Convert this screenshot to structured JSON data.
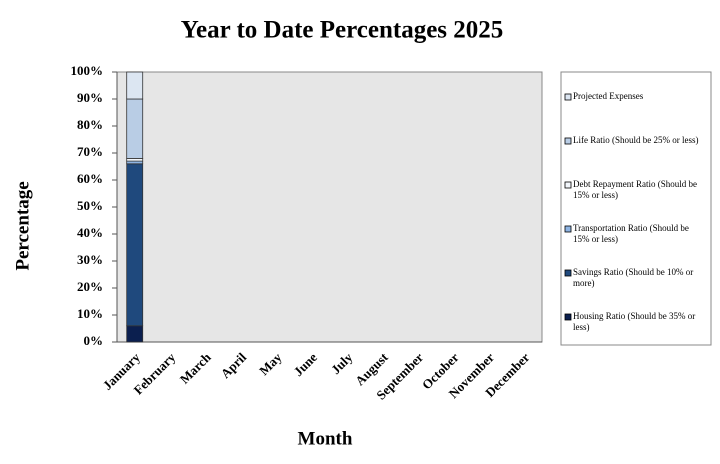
{
  "chart_data": {
    "type": "stacked-bar",
    "title": "Year to Date Percentages 2025",
    "x_label": "Month",
    "y_label": "Percentage",
    "categories": [
      "January",
      "February",
      "March",
      "April",
      "May",
      "June",
      "July",
      "August",
      "September",
      "October",
      "November",
      "December"
    ],
    "series": [
      {
        "name": "Housing Ratio (Should be 35% or less)",
        "color": "#0b1f4f",
        "values": [
          6,
          null,
          null,
          null,
          null,
          null,
          null,
          null,
          null,
          null,
          null,
          null
        ]
      },
      {
        "name": "Savings Ratio (Should be 10% or more)",
        "color": "#1f497d",
        "values": [
          60,
          null,
          null,
          null,
          null,
          null,
          null,
          null,
          null,
          null,
          null,
          null
        ]
      },
      {
        "name": "Transportation Ratio (Should be 15% or less)",
        "color": "#8eb4e3",
        "values": [
          1,
          null,
          null,
          null,
          null,
          null,
          null,
          null,
          null,
          null,
          null,
          null
        ]
      },
      {
        "name": "Debt Repayment Ratio (Should be 15% or less)",
        "color": "#f2f6fb",
        "values": [
          1,
          null,
          null,
          null,
          null,
          null,
          null,
          null,
          null,
          null,
          null,
          null
        ]
      },
      {
        "name": "Life Ratio (Should be 25% or less)",
        "color": "#b9cde5",
        "values": [
          22,
          null,
          null,
          null,
          null,
          null,
          null,
          null,
          null,
          null,
          null,
          null
        ]
      },
      {
        "name": "Projected Expenses",
        "color": "#dce6f2",
        "values": [
          10,
          null,
          null,
          null,
          null,
          null,
          null,
          null,
          null,
          null,
          null,
          null
        ]
      }
    ],
    "ylim": [
      0,
      100
    ],
    "yticks": [
      {
        "value": 0,
        "label": "0%"
      },
      {
        "value": 10,
        "label": "10%"
      },
      {
        "value": 20,
        "label": "20%"
      },
      {
        "value": 30,
        "label": "30%"
      },
      {
        "value": 40,
        "label": "40%"
      },
      {
        "value": 50,
        "label": "50%"
      },
      {
        "value": 60,
        "label": "60%"
      },
      {
        "value": 70,
        "label": "70%"
      },
      {
        "value": 80,
        "label": "80%"
      },
      {
        "value": 90,
        "label": "90%"
      },
      {
        "value": 100,
        "label": "100%"
      }
    ],
    "legend": "right"
  }
}
